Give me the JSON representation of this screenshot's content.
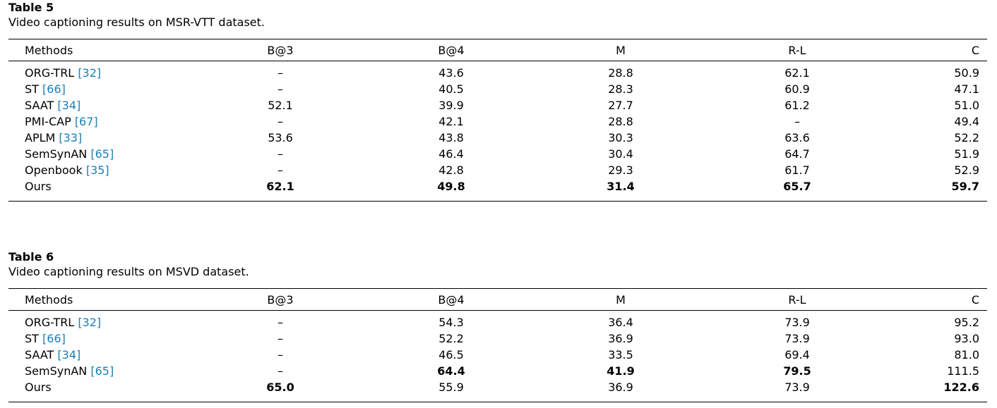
{
  "table5": {
    "label": "Table 5",
    "caption": "Video captioning results on MSR-VTT dataset.",
    "headers": [
      "Methods",
      "B@3",
      "B@4",
      "M",
      "R-L",
      "C"
    ],
    "rows": [
      {
        "method": "ORG-TRL",
        "ref": "[32]",
        "values": [
          "–",
          "43.6",
          "28.8",
          "62.1",
          "50.9"
        ]
      },
      {
        "method": "ST",
        "ref": "[66]",
        "values": [
          "–",
          "40.5",
          "28.3",
          "60.9",
          "47.1"
        ]
      },
      {
        "method": "SAAT",
        "ref": "[34]",
        "values": [
          "52.1",
          "39.9",
          "27.7",
          "61.2",
          "51.0"
        ]
      },
      {
        "method": "PMI-CAP",
        "ref": "[67]",
        "values": [
          "–",
          "42.1",
          "28.8",
          "–",
          "49.4"
        ]
      },
      {
        "method": "APLM",
        "ref": "[33]",
        "values": [
          "53.6",
          "43.8",
          "30.3",
          "63.6",
          "52.2"
        ]
      },
      {
        "method": "SemSynAN",
        "ref": "[65]",
        "values": [
          "–",
          "46.4",
          "30.4",
          "64.7",
          "51.9"
        ]
      },
      {
        "method": "Openbook",
        "ref": "[35]",
        "values": [
          "–",
          "42.8",
          "29.3",
          "61.7",
          "52.9"
        ]
      },
      {
        "method": "Ours",
        "ref": "",
        "values": [
          "62.1",
          "49.8",
          "31.4",
          "65.7",
          "59.7"
        ],
        "bold": [
          true,
          true,
          true,
          true,
          true
        ]
      }
    ]
  },
  "table6": {
    "label": "Table 6",
    "caption": "Video captioning results on MSVD dataset.",
    "headers": [
      "Methods",
      "B@3",
      "B@4",
      "M",
      "R-L",
      "C"
    ],
    "rows": [
      {
        "method": "ORG-TRL",
        "ref": "[32]",
        "values": [
          "–",
          "54.3",
          "36.4",
          "73.9",
          "95.2"
        ]
      },
      {
        "method": "ST",
        "ref": "[66]",
        "values": [
          "–",
          "52.2",
          "36.9",
          "73.9",
          "93.0"
        ]
      },
      {
        "method": "SAAT",
        "ref": "[34]",
        "values": [
          "–",
          "46.5",
          "33.5",
          "69.4",
          "81.0"
        ]
      },
      {
        "method": "SemSynAN",
        "ref": "[65]",
        "values": [
          "–",
          "64.4",
          "41.9",
          "79.5",
          "111.5"
        ],
        "bold": [
          false,
          true,
          true,
          true,
          false
        ]
      },
      {
        "method": "Ours",
        "ref": "",
        "values": [
          "65.0",
          "55.9",
          "36.9",
          "73.9",
          "122.6"
        ],
        "bold": [
          true,
          false,
          false,
          false,
          true
        ]
      }
    ]
  },
  "colors": {
    "reference": "#1a7fb5",
    "text": "#000000"
  }
}
